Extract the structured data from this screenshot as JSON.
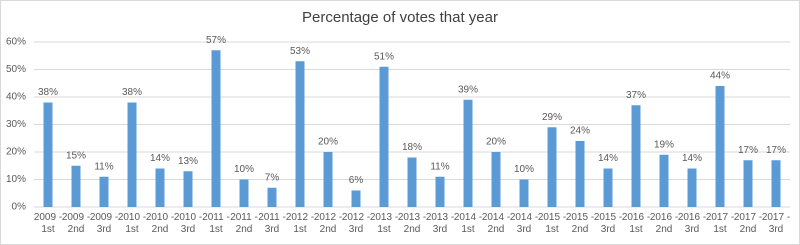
{
  "chart_data": {
    "type": "bar",
    "title": "Percentage of votes that year",
    "categories": [
      "2009 - 1st",
      "2009 - 2nd",
      "2009 - 3rd",
      "2010 - 1st",
      "2010 - 2nd",
      "2010 - 3rd",
      "2011 - 1st",
      "2011 - 2nd",
      "2011 - 3rd",
      "2012 - 1st",
      "2012 - 2nd",
      "2012 - 3rd",
      "2013 - 1st",
      "2013 - 2nd",
      "2013 - 3rd",
      "2014 - 1st",
      "2014 - 2nd",
      "2014 - 3rd",
      "2015 - 1st",
      "2015 - 2nd",
      "2015 - 3rd",
      "2016 - 1st",
      "2016 - 2nd",
      "2016 - 3rd",
      "2017 - 1st",
      "2017 - 2nd",
      "2017 - 3rd"
    ],
    "values": [
      38,
      15,
      11,
      38,
      14,
      13,
      57,
      10,
      7,
      53,
      20,
      6,
      51,
      18,
      11,
      39,
      20,
      10,
      29,
      24,
      14,
      37,
      19,
      14,
      44,
      17,
      17
    ],
    "value_labels": [
      "38%",
      "15%",
      "11%",
      "38%",
      "14%",
      "13%",
      "57%",
      "10%",
      "7%",
      "53%",
      "20%",
      "6%",
      "51%",
      "18%",
      "11%",
      "39%",
      "20%",
      "10%",
      "29%",
      "24%",
      "14%",
      "37%",
      "19%",
      "14%",
      "44%",
      "17%",
      "17%"
    ],
    "color": "#5b9bd5",
    "ylim": [
      0,
      60
    ],
    "yticks": [
      {
        "value": 0,
        "label": "0%"
      },
      {
        "value": 10,
        "label": "10%"
      },
      {
        "value": 20,
        "label": "20%"
      },
      {
        "value": 30,
        "label": "30%"
      },
      {
        "value": 40,
        "label": "40%"
      },
      {
        "value": 50,
        "label": "50%"
      },
      {
        "value": 60,
        "label": "60%"
      }
    ],
    "grid": true
  }
}
